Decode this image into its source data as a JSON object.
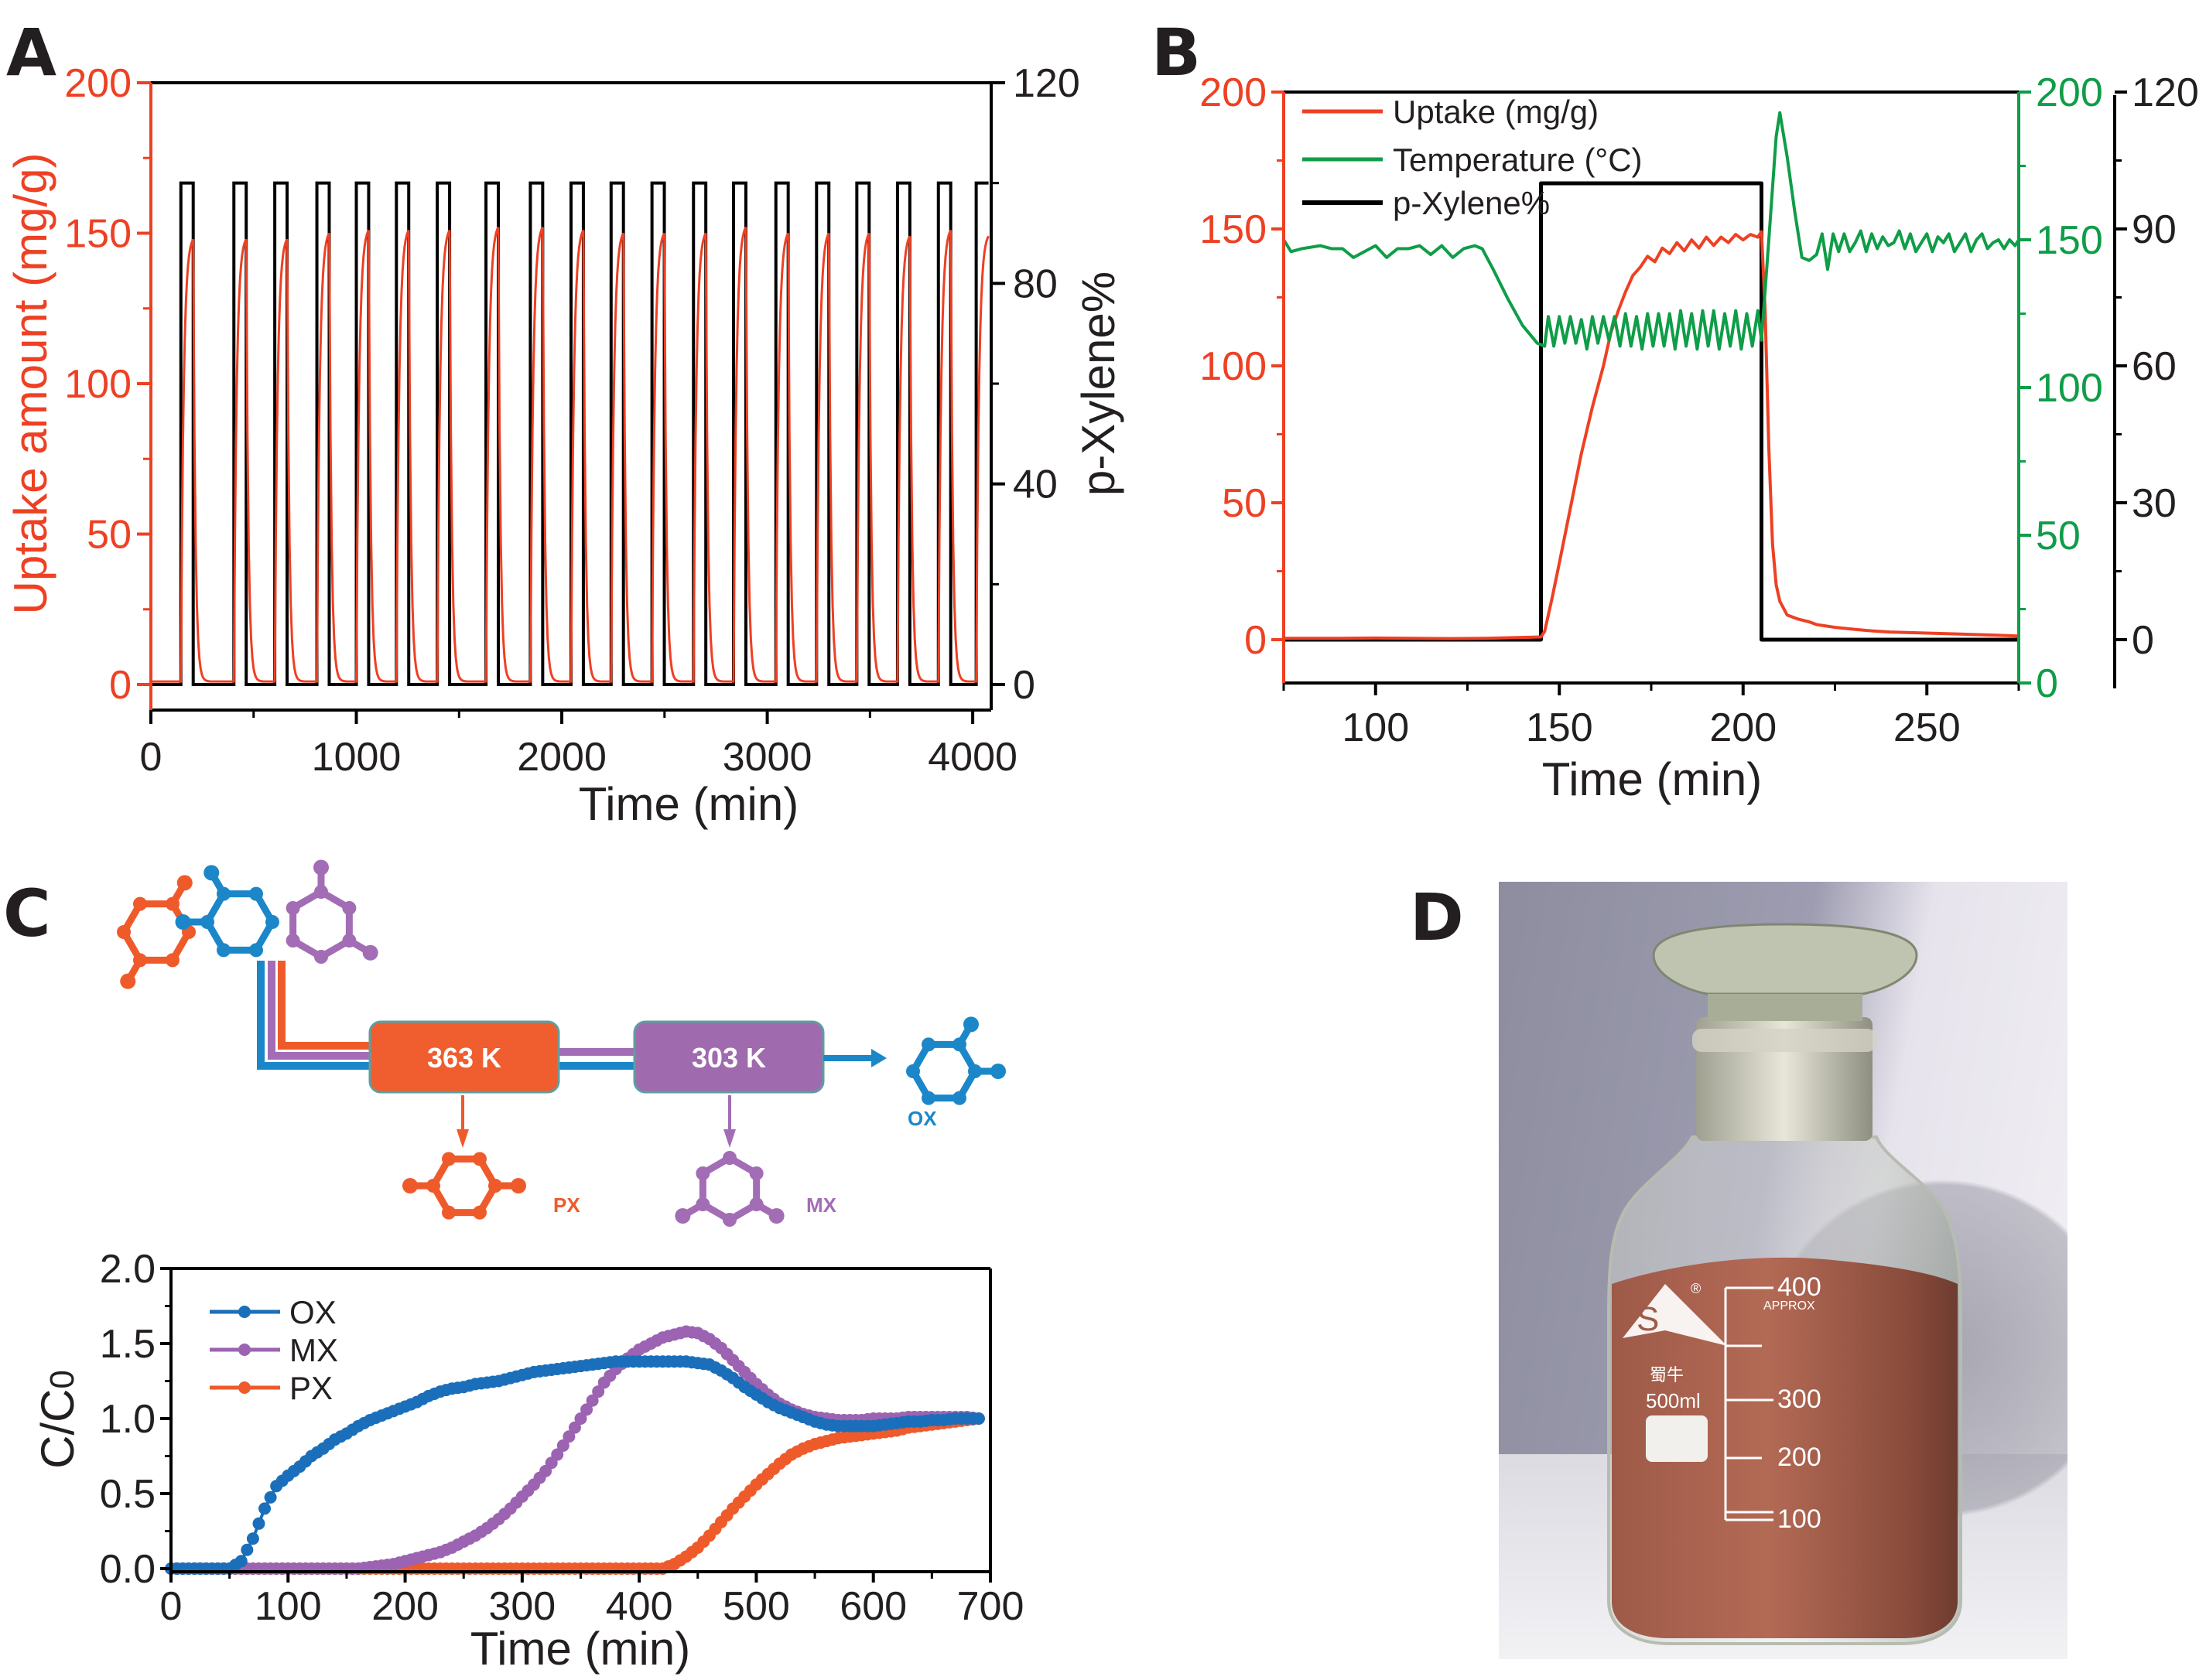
{
  "figure": {
    "panels": [
      "A",
      "B",
      "C",
      "D"
    ]
  },
  "chart_data": [
    {
      "id": "A",
      "type": "line",
      "title": "",
      "xlabel": "Time (min)",
      "ylabel_left": "Uptake amount (mg/g)",
      "ylabel_right": "p-Xylene%",
      "xlim": [
        0,
        4090
      ],
      "ylim_left": [
        -8.5,
        200
      ],
      "ylim_right": [
        -5.1,
        120
      ],
      "x_ticks": [
        0,
        1000,
        2000,
        3000,
        4000
      ],
      "y_ticks_left": [
        0,
        50,
        100,
        150,
        200
      ],
      "y_ticks_right": [
        0,
        40,
        80,
        120
      ],
      "colors": {
        "uptake": "#ee4023",
        "pxylene": "#000000"
      },
      "series": [
        {
          "name": "p-Xylene%",
          "axis": "right",
          "shape": "square pulses",
          "on_level": 100,
          "off_level": 0,
          "pulse_width_min": 60,
          "pulse_starts_min": [
            146,
            404,
            603,
            808,
            1000,
            1195,
            1394,
            1631,
            1847,
            2045,
            2240,
            2439,
            2641,
            2836,
            3042,
            3240,
            3436,
            3634,
            3833,
            4017
          ]
        },
        {
          "name": "Uptake amount",
          "axis": "left",
          "cycle_peak_uptake": [
            148,
            148,
            148,
            150,
            151,
            151,
            151,
            152,
            152,
            151,
            150,
            150,
            150,
            152,
            150,
            150,
            150,
            149,
            151,
            149
          ],
          "baseline": 1
        }
      ]
    },
    {
      "id": "B",
      "type": "line",
      "title": "",
      "xlabel": "Time (min)",
      "xlim": [
        75,
        275
      ],
      "x_ticks": [
        100,
        150,
        200,
        250
      ],
      "axes": {
        "uptake": {
          "ylim": [
            -15.8,
            200
          ],
          "ticks": [
            0,
            50,
            100,
            150,
            200
          ],
          "color": "#ee4023"
        },
        "temperature": {
          "ylim": [
            0,
            200
          ],
          "ticks": [
            0,
            50,
            100,
            150,
            200
          ],
          "color": "#0f9d48"
        },
        "pxylene": {
          "ylim": [
            -9.5,
            120
          ],
          "ticks": [
            0,
            30,
            60,
            90,
            120
          ],
          "color": "#231f20"
        }
      },
      "legend": {
        "position": "top-left",
        "entries": [
          {
            "label": "Uptake (mg/g)",
            "color": "#ee4023"
          },
          {
            "label": "Temperature (°C)",
            "color": "#0f9d48"
          },
          {
            "label": "p-Xylene%",
            "color": "#000000"
          }
        ]
      },
      "series": [
        {
          "name": "Uptake (mg/g)",
          "axis": "uptake",
          "x": [
            75,
            90,
            100,
            110,
            120,
            130,
            140,
            145,
            146,
            148,
            150,
            153,
            156,
            159,
            162,
            164,
            166,
            168,
            170,
            172,
            174,
            176,
            178,
            180,
            182,
            184,
            186,
            188,
            190,
            192,
            194,
            196,
            198,
            200,
            202,
            204,
            205,
            206,
            207,
            208,
            209,
            210,
            212,
            215,
            218,
            220,
            225,
            230,
            235,
            240,
            250,
            260,
            270,
            275
          ],
          "y": [
            0.5,
            0.5,
            0.6,
            0.5,
            0.4,
            0.5,
            0.8,
            1.0,
            3,
            15,
            28,
            48,
            68,
            85,
            100,
            112,
            120,
            127,
            133,
            136,
            140,
            138,
            143,
            141,
            145,
            142,
            146,
            143,
            147,
            144,
            147,
            145,
            148,
            146,
            148,
            147,
            149,
            120,
            70,
            35,
            20,
            14,
            9,
            7.5,
            6.5,
            5.5,
            4.5,
            3.8,
            3.2,
            2.8,
            2.4,
            2.0,
            1.6,
            1.3
          ]
        },
        {
          "name": "Temperature (°C)",
          "axis": "temperature",
          "x": [
            75,
            77,
            80,
            85,
            88,
            91,
            94,
            97,
            100,
            103,
            106,
            109,
            112,
            115,
            118,
            121,
            124,
            127,
            129,
            132,
            136,
            140,
            144,
            146,
            147,
            148.5,
            150,
            151.5,
            153,
            154.5,
            156,
            157.5,
            159,
            160.5,
            162,
            163.5,
            165,
            166.5,
            168,
            169.5,
            171,
            172.5,
            174,
            175.5,
            177,
            178.5,
            180,
            181.5,
            183,
            184.5,
            186,
            187.5,
            189,
            190.5,
            192,
            193.5,
            195,
            196.5,
            198,
            199.5,
            201,
            202.5,
            204,
            205,
            207,
            209,
            210,
            212,
            214,
            216,
            218,
            220,
            221.5,
            223,
            224.5,
            226,
            227.5,
            229,
            230.5,
            232,
            233.5,
            235,
            236.5,
            238,
            239.5,
            241,
            242.5,
            244,
            245.5,
            247,
            248.5,
            250,
            251.5,
            253,
            254.5,
            256,
            257.5,
            259,
            260.5,
            262,
            263.5,
            265,
            266.5,
            268,
            269.5,
            271,
            272.5,
            274,
            275
          ],
          "y": [
            150,
            146,
            147,
            148,
            147,
            147,
            144,
            146,
            148,
            144,
            147,
            147,
            148,
            145,
            148,
            144,
            147,
            148,
            147,
            140,
            130,
            121,
            115,
            114,
            124,
            114,
            124,
            115,
            124,
            115,
            123,
            113,
            124,
            115,
            124,
            116,
            124,
            114,
            125,
            114,
            124,
            113,
            125,
            114,
            125,
            114,
            125,
            113,
            126,
            114,
            125,
            113,
            126,
            114,
            126,
            113,
            125,
            114,
            126,
            113,
            125,
            114,
            126,
            116,
            150,
            185,
            193,
            178,
            160,
            144,
            143,
            145,
            152,
            140,
            152,
            146,
            152,
            146,
            149,
            153,
            146,
            152,
            147,
            151,
            148,
            149,
            153,
            147,
            152,
            146,
            149,
            152,
            146,
            151,
            149,
            152,
            146,
            149,
            152,
            146,
            150,
            152,
            147,
            149,
            150,
            147,
            150,
            148,
            150
          ]
        },
        {
          "name": "p-Xylene%",
          "axis": "pxylene",
          "x": [
            75,
            145,
            145,
            205,
            205,
            275
          ],
          "y": [
            0,
            0,
            100,
            100,
            0,
            0
          ]
        }
      ]
    },
    {
      "id": "C",
      "type": "line",
      "title": "",
      "xlabel": "Time (min)",
      "ylabel": "C/C0",
      "xlim": [
        0,
        700
      ],
      "ylim": [
        0,
        2.0
      ],
      "x_ticks": [
        0,
        100,
        200,
        300,
        400,
        500,
        600,
        700
      ],
      "y_ticks": [
        "0.0",
        "0.5",
        "1.0",
        "1.5",
        "2.0"
      ],
      "legend": {
        "position": "top-left",
        "entries": [
          "OX",
          "MX",
          "PX"
        ]
      },
      "x": [
        0,
        10,
        20,
        30,
        40,
        50,
        60,
        70,
        80,
        90,
        100,
        110,
        120,
        130,
        140,
        150,
        160,
        170,
        180,
        190,
        200,
        210,
        220,
        230,
        240,
        250,
        260,
        270,
        280,
        290,
        300,
        310,
        320,
        330,
        340,
        350,
        360,
        370,
        380,
        390,
        400,
        410,
        420,
        430,
        440,
        450,
        460,
        470,
        480,
        490,
        500,
        510,
        520,
        530,
        540,
        550,
        560,
        570,
        580,
        590,
        600,
        610,
        620,
        630,
        640,
        650,
        660,
        670,
        680,
        690
      ],
      "series": [
        {
          "name": "OX",
          "color": "#1b6fba",
          "values": [
            0,
            0,
            0,
            0,
            0,
            0,
            0.05,
            0.2,
            0.4,
            0.55,
            0.62,
            0.68,
            0.75,
            0.8,
            0.86,
            0.9,
            0.95,
            0.99,
            1.02,
            1.05,
            1.08,
            1.11,
            1.15,
            1.18,
            1.2,
            1.21,
            1.23,
            1.24,
            1.25,
            1.27,
            1.29,
            1.31,
            1.32,
            1.33,
            1.34,
            1.35,
            1.36,
            1.37,
            1.38,
            1.38,
            1.38,
            1.38,
            1.38,
            1.38,
            1.38,
            1.37,
            1.36,
            1.32,
            1.27,
            1.21,
            1.16,
            1.11,
            1.07,
            1.04,
            1.01,
            0.98,
            0.96,
            0.95,
            0.95,
            0.95,
            0.95,
            0.96,
            0.97,
            0.98,
            0.98,
            0.99,
            0.99,
            1.0,
            1.0,
            1.0
          ]
        },
        {
          "name": "MX",
          "color": "#9b63b1",
          "values": [
            0,
            0,
            0,
            0,
            0,
            0,
            0,
            0,
            0,
            0,
            0,
            0,
            0,
            0,
            0,
            0,
            0,
            0.01,
            0.02,
            0.03,
            0.05,
            0.07,
            0.09,
            0.11,
            0.14,
            0.18,
            0.22,
            0.27,
            0.33,
            0.4,
            0.48,
            0.56,
            0.65,
            0.76,
            0.88,
            1.0,
            1.12,
            1.24,
            1.33,
            1.4,
            1.46,
            1.5,
            1.54,
            1.56,
            1.58,
            1.57,
            1.53,
            1.47,
            1.39,
            1.31,
            1.23,
            1.16,
            1.1,
            1.06,
            1.03,
            1.01,
            1.0,
            0.99,
            0.99,
            0.99,
            1.0,
            1.0,
            1.0,
            1.01,
            1.01,
            1.01,
            1.01,
            1.01,
            1.01,
            1.0
          ]
        },
        {
          "name": "PX",
          "color": "#ef5a2b",
          "values": [
            0,
            0,
            0,
            0,
            0,
            0,
            0,
            0,
            0,
            0,
            0,
            0,
            0,
            0,
            0,
            0,
            0,
            0,
            0,
            0,
            0,
            0,
            0,
            0,
            0,
            0,
            0,
            0,
            0,
            0,
            0,
            0,
            0,
            0,
            0,
            0,
            0,
            0,
            0,
            0,
            0,
            0,
            0,
            0.03,
            0.08,
            0.14,
            0.22,
            0.31,
            0.4,
            0.48,
            0.56,
            0.63,
            0.7,
            0.76,
            0.8,
            0.83,
            0.85,
            0.87,
            0.88,
            0.89,
            0.9,
            0.91,
            0.92,
            0.94,
            0.95,
            0.96,
            0.97,
            0.98,
            0.99,
            1.0
          ]
        }
      ]
    }
  ],
  "diagram_c": {
    "stage1_label": "363 K",
    "stage2_label": "303 K",
    "products": {
      "px": "PX",
      "mx": "MX",
      "ox": "OX"
    },
    "colors": {
      "px": "#ef5a2b",
      "ox": "#1b87c9",
      "mx": "#a36db5",
      "stage1": "#f05d2e",
      "stage2": "#a06aae",
      "box_border": "#5f9ea0"
    }
  },
  "photo_d": {
    "description": "glass reagent bottle filled with reddish-brown powder",
    "bottle_text": {
      "brand_logo": "S",
      "registered": "®",
      "brand_cn": "蜀牛",
      "volume": "500ml",
      "graduations": [
        "400",
        "300",
        "200",
        "100"
      ],
      "approx": "APPROX"
    }
  }
}
